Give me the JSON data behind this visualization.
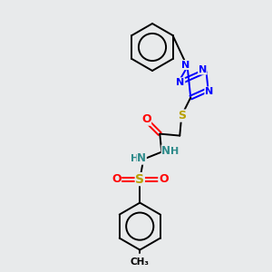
{
  "background_color": "#e8eaeb",
  "bond_color": "#000000",
  "N_color": "#0000ff",
  "S_color": "#b8a000",
  "O_color": "#ff0000",
  "H_color": "#2e8b8b",
  "figsize": [
    3.0,
    3.0
  ],
  "dpi": 100,
  "xlim": [
    0,
    300
  ],
  "ylim": [
    0,
    300
  ]
}
